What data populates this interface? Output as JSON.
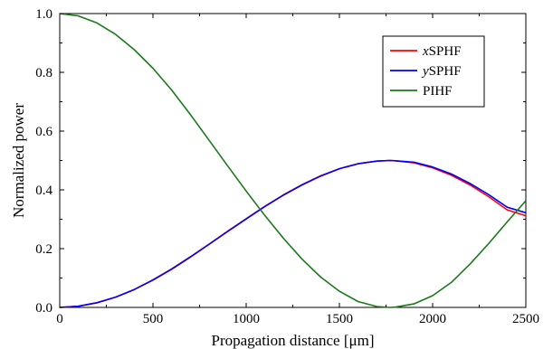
{
  "chart_data": {
    "type": "line",
    "xlabel": "Propagation distance [μm]",
    "ylabel": "Normalized power",
    "xlim": [
      0,
      2500
    ],
    "ylim": [
      0,
      1.0
    ],
    "x_ticks": [
      "0",
      "500",
      "1000",
      "1500",
      "2000",
      "2500"
    ],
    "y_ticks": [
      "0.0",
      "0.2",
      "0.4",
      "0.6",
      "0.8",
      "1.0"
    ],
    "grid": false,
    "legend_position": "top-right",
    "x": [
      0,
      100,
      200,
      300,
      400,
      500,
      600,
      700,
      800,
      900,
      1000,
      1100,
      1200,
      1300,
      1400,
      1500,
      1600,
      1700,
      1770,
      1800,
      1900,
      2000,
      2100,
      2200,
      2300,
      2400,
      2500
    ],
    "series": [
      {
        "name_italic": "x",
        "name_rest": "SPHF",
        "color": "#ff0000",
        "values": [
          0.0,
          0.004,
          0.016,
          0.035,
          0.061,
          0.094,
          0.131,
          0.172,
          0.215,
          0.259,
          0.302,
          0.344,
          0.383,
          0.418,
          0.448,
          0.472,
          0.489,
          0.498,
          0.5,
          0.499,
          0.492,
          0.475,
          0.45,
          0.417,
          0.377,
          0.332,
          0.312
        ]
      },
      {
        "name_italic": "y",
        "name_rest": "SPHF",
        "color": "#0000ff",
        "values": [
          0.0,
          0.004,
          0.016,
          0.035,
          0.061,
          0.093,
          0.13,
          0.171,
          0.214,
          0.258,
          0.301,
          0.343,
          0.382,
          0.417,
          0.447,
          0.472,
          0.489,
          0.498,
          0.5,
          0.499,
          0.494,
          0.478,
          0.454,
          0.422,
          0.384,
          0.341,
          0.322
        ]
      },
      {
        "name_italic": "",
        "name_rest": "PIHF",
        "color": "#1a7a1a",
        "values": [
          1.0,
          0.992,
          0.968,
          0.929,
          0.877,
          0.814,
          0.74,
          0.657,
          0.57,
          0.482,
          0.396,
          0.313,
          0.235,
          0.164,
          0.103,
          0.055,
          0.02,
          0.003,
          0.0,
          0.001,
          0.012,
          0.04,
          0.085,
          0.147,
          0.217,
          0.291,
          0.363
        ]
      }
    ]
  }
}
